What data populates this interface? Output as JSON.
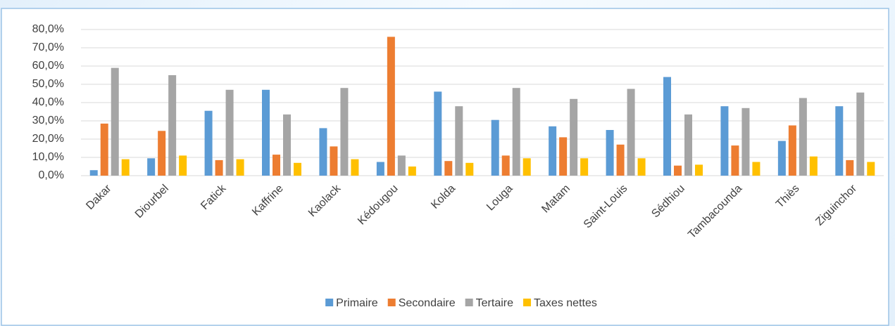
{
  "chart_data": {
    "type": "bar",
    "categories": [
      "Dakar",
      "Diourbel",
      "Fatick",
      "Kaffrine",
      "Kaolack",
      "Kédougou",
      "Kolda",
      "Louga",
      "Matam",
      "Saint-Louis",
      "Sédhiou",
      "Tambacounda",
      "Thiès",
      "Ziguinchor"
    ],
    "series": [
      {
        "name": "Primaire",
        "color": "#5b9bd5",
        "values": [
          3,
          9.5,
          35.5,
          47,
          26,
          7.5,
          46,
          30.5,
          27,
          25,
          54,
          38,
          19,
          38
        ]
      },
      {
        "name": "Secondaire",
        "color": "#ed7d31",
        "values": [
          28.5,
          24.5,
          8.5,
          11.5,
          16,
          76,
          8,
          11,
          21,
          17,
          5.5,
          16.5,
          27.5,
          8.5
        ]
      },
      {
        "name": "Tertaire",
        "color": "#a5a5a5",
        "values": [
          59,
          55,
          47,
          33.5,
          48,
          11,
          38,
          48,
          42,
          47.5,
          33.5,
          37,
          42.5,
          45.5
        ]
      },
      {
        "name": "Taxes nettes",
        "color": "#ffc000",
        "values": [
          9,
          11,
          9,
          7,
          9,
          5,
          7,
          9.5,
          9.5,
          9.5,
          6,
          7.5,
          10.5,
          7.5
        ]
      }
    ],
    "ylim": [
      0,
      80
    ],
    "yticks": [
      {
        "value": 0,
        "label": "0,0%"
      },
      {
        "value": 10,
        "label": "10,0%"
      },
      {
        "value": 20,
        "label": "20,0%"
      },
      {
        "value": 30,
        "label": "30,0%"
      },
      {
        "value": 40,
        "label": "40,0%"
      },
      {
        "value": 50,
        "label": "50,0%"
      },
      {
        "value": 60,
        "label": "60,0%"
      },
      {
        "value": 70,
        "label": "70,0%"
      },
      {
        "value": 80,
        "label": "80,0%"
      }
    ],
    "grid": true,
    "legend": "bottom"
  }
}
